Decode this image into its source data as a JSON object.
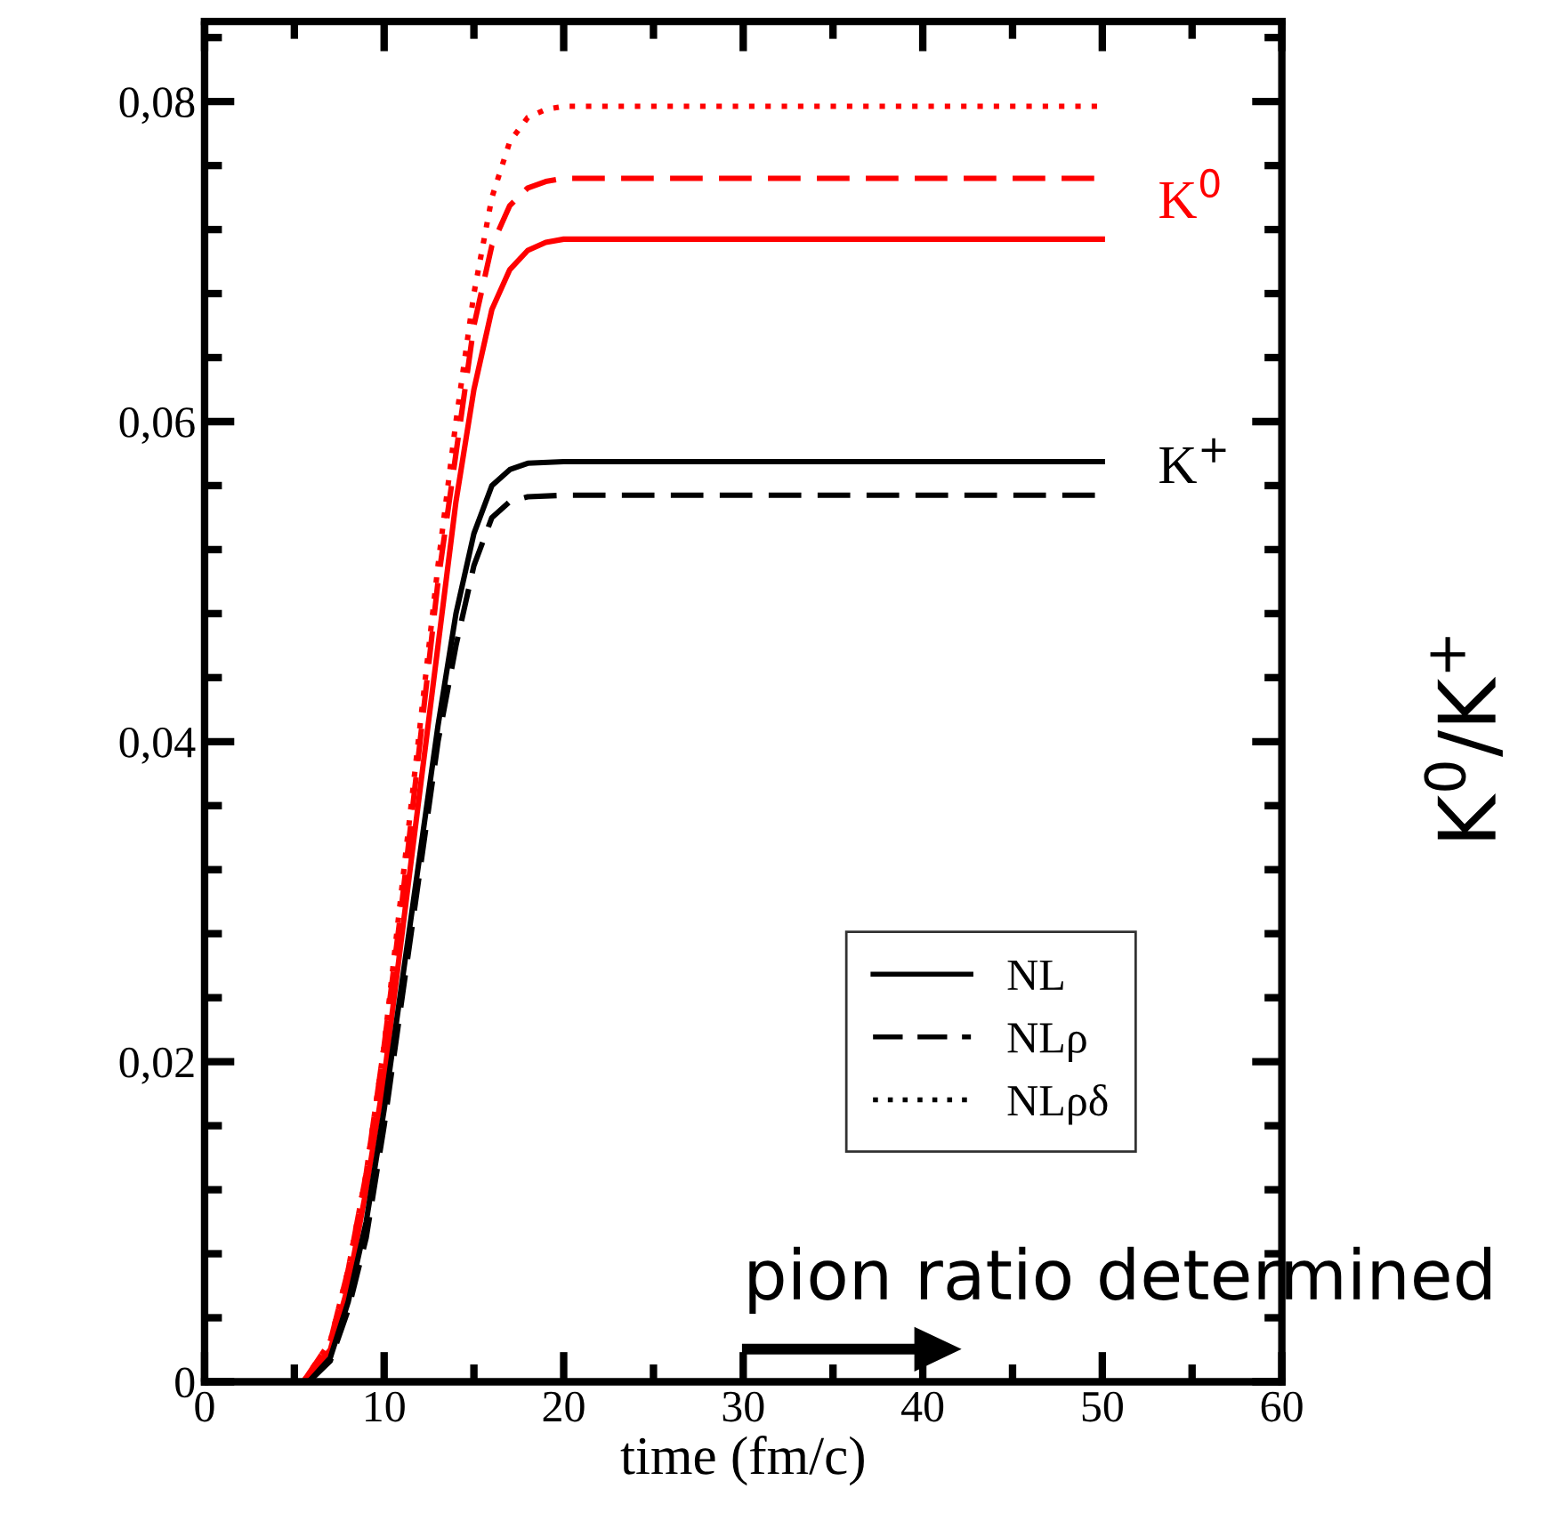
{
  "chart_data": {
    "type": "line",
    "xlabel": "time (fm/c)",
    "xlim": [
      0,
      60
    ],
    "xticks": [
      0,
      10,
      20,
      30,
      40,
      50,
      60
    ],
    "ylim": [
      0,
      0.085
    ],
    "yticks": [
      {
        "value": 0,
        "label": "0"
      },
      {
        "value": 0.02,
        "label": "0,02"
      },
      {
        "value": 0.04,
        "label": "0,04"
      },
      {
        "value": 0.06,
        "label": "0,06"
      },
      {
        "value": 0.08,
        "label": "0,08"
      }
    ],
    "legend": "bottom right",
    "grid": false,
    "series": [
      {
        "color": "#ff0000",
        "line_style": "solid",
        "x": [
          5.5,
          7,
          8,
          9,
          10,
          11,
          12,
          13,
          14,
          15,
          16,
          17,
          18,
          19,
          20,
          25,
          50
        ],
        "values": [
          0,
          0.002,
          0.006,
          0.012,
          0.019,
          0.028,
          0.037,
          0.046,
          0.055,
          0.062,
          0.067,
          0.0695,
          0.0707,
          0.0712,
          0.0714,
          0.0714,
          0.0714
        ]
      },
      {
        "color": "#ff0000",
        "line_style": "dashed",
        "x": [
          5.5,
          7,
          8,
          9,
          10,
          11,
          12,
          13,
          14,
          15,
          16,
          17,
          18,
          19,
          20,
          25,
          50
        ],
        "values": [
          0,
          0.0025,
          0.007,
          0.013,
          0.021,
          0.03,
          0.04,
          0.05,
          0.058,
          0.066,
          0.071,
          0.0735,
          0.0746,
          0.075,
          0.0752,
          0.0752,
          0.0752
        ]
      },
      {
        "color": "#ff0000",
        "line_style": "dotted",
        "x": [
          5.5,
          7,
          8,
          9,
          10,
          11,
          12,
          13,
          14,
          15,
          16,
          17,
          18,
          19,
          20,
          25,
          50
        ],
        "values": [
          0,
          0.0025,
          0.007,
          0.013,
          0.021,
          0.031,
          0.041,
          0.051,
          0.06,
          0.068,
          0.074,
          0.0775,
          0.079,
          0.0795,
          0.0797,
          0.0797,
          0.0797
        ]
      },
      {
        "name": "NL",
        "color": "#000000",
        "line_style": "solid",
        "x": [
          5.8,
          7,
          8,
          9,
          10,
          11,
          12,
          13,
          14,
          15,
          16,
          17,
          18,
          20,
          25,
          50
        ],
        "values": [
          0,
          0.0015,
          0.005,
          0.01,
          0.017,
          0.025,
          0.033,
          0.041,
          0.048,
          0.053,
          0.056,
          0.057,
          0.0574,
          0.0575,
          0.0575,
          0.0575
        ]
      },
      {
        "name": "NLρ",
        "color": "#000000",
        "line_style": "dashed",
        "x": [
          5.8,
          7,
          8,
          9,
          10,
          11,
          12,
          13,
          14,
          15,
          16,
          17,
          18,
          20,
          25,
          50
        ],
        "values": [
          0,
          0.0013,
          0.0045,
          0.009,
          0.016,
          0.024,
          0.032,
          0.04,
          0.046,
          0.051,
          0.054,
          0.055,
          0.0553,
          0.0554,
          0.0554,
          0.0554
        ]
      },
      {
        "name": "NLρδ",
        "color": "#000000",
        "line_style": "dotted"
      }
    ],
    "annotations": [
      "K$^{0}$",
      "K$^{+}$",
      "pion ratio determined",
      "K$^{0}$/K$^{+}$"
    ]
  }
}
